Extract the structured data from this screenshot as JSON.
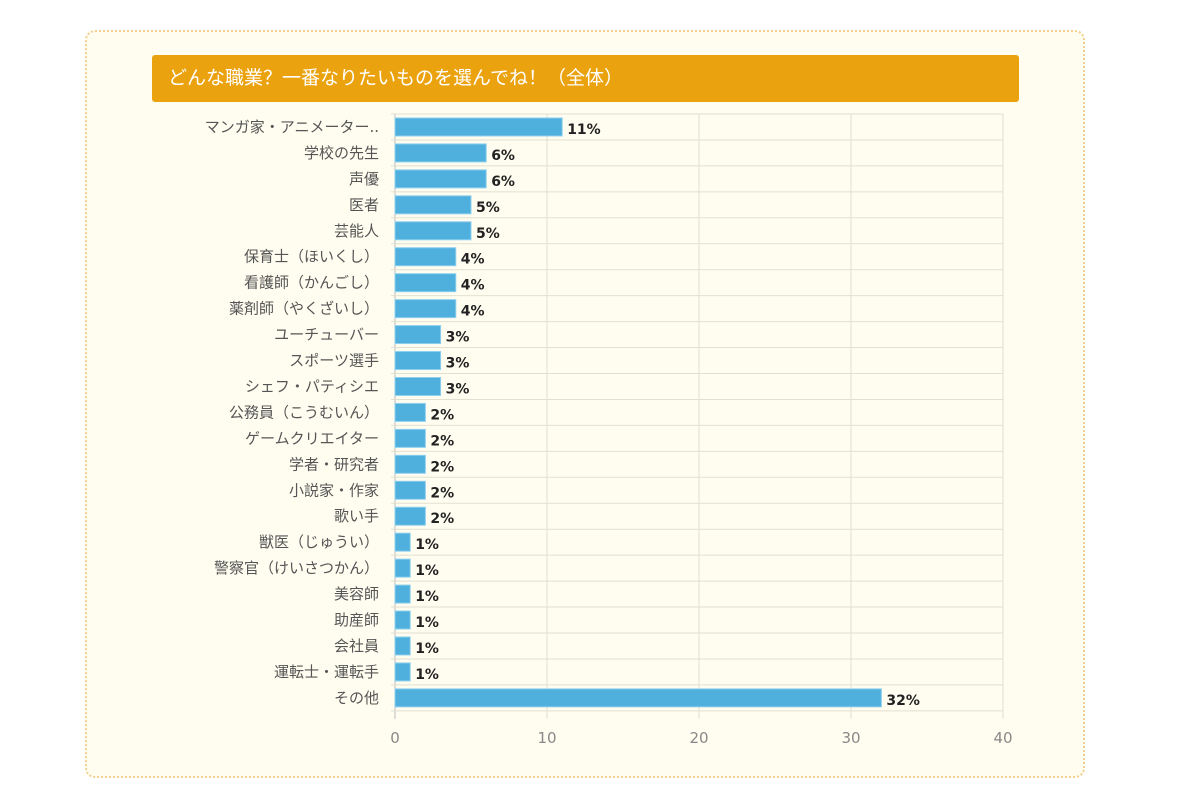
{
  "chart_data": {
    "type": "bar",
    "orientation": "horizontal",
    "title": "どんな職業？一番なりたいものを選んでね！（全体）",
    "categories": [
      "マンガ家・アニメーター..",
      "学校の先生",
      "声優",
      "医者",
      "芸能人",
      "保育士（ほいくし）",
      "看護師（かんごし）",
      "薬剤師（やくざいし）",
      "ユーチューバー",
      "スポーツ選手",
      "シェフ・パティシエ",
      "公務員（こうむいん）",
      "ゲームクリエイター",
      "学者・研究者",
      "小説家・作家",
      "歌い手",
      "獣医（じゅうい）",
      "警察官（けいさつかん）",
      "美容師",
      "助産師",
      "会社員",
      "運転士・運転手",
      "その他"
    ],
    "values": [
      11,
      6,
      6,
      5,
      5,
      4,
      4,
      4,
      3,
      3,
      3,
      2,
      2,
      2,
      2,
      2,
      1,
      1,
      1,
      1,
      1,
      1,
      32
    ],
    "value_suffix": "%",
    "xlim": [
      0,
      40
    ],
    "xticks": [
      0,
      10,
      20,
      30,
      40
    ],
    "xlabel": "",
    "ylabel": "",
    "grid": true,
    "colors": {
      "bar": "#4fb0de",
      "title_bg": "#eba20f",
      "panel_bg": "#fffdf0"
    }
  }
}
